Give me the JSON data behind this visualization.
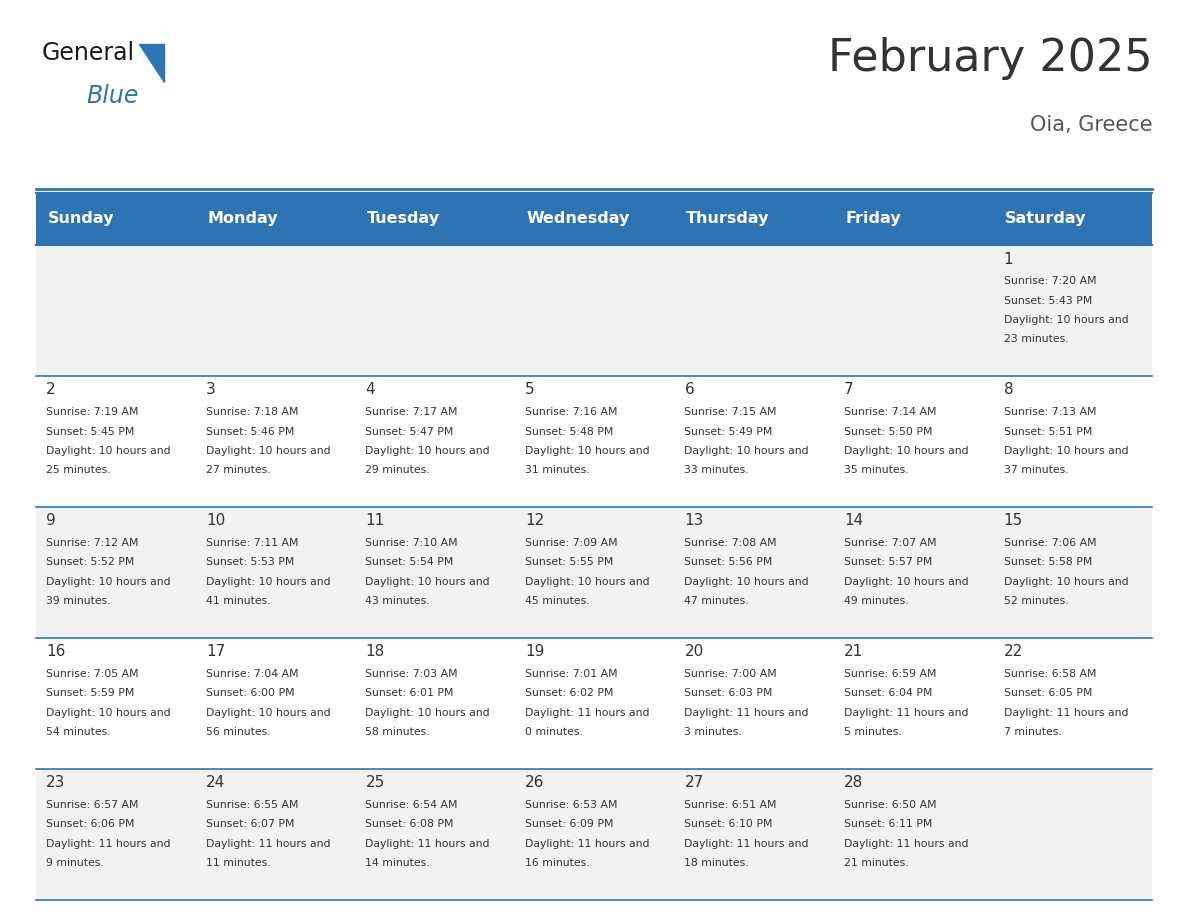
{
  "title": "February 2025",
  "subtitle": "Oia, Greece",
  "days_of_week": [
    "Sunday",
    "Monday",
    "Tuesday",
    "Wednesday",
    "Thursday",
    "Friday",
    "Saturday"
  ],
  "header_bg": "#2E74B5",
  "header_text": "#FFFFFF",
  "row_bg_even": "#F2F2F2",
  "row_bg_odd": "#FFFFFF",
  "cell_text_color": "#333333",
  "border_color": "#2E74B5",
  "title_color": "#333333",
  "subtitle_color": "#555555",
  "calendar_data": {
    "1": {
      "sunrise": "7:20 AM",
      "sunset": "5:43 PM",
      "daylight": "10 hours and 23 minutes",
      "row": 0,
      "col": 6
    },
    "2": {
      "sunrise": "7:19 AM",
      "sunset": "5:45 PM",
      "daylight": "10 hours and 25 minutes",
      "row": 1,
      "col": 0
    },
    "3": {
      "sunrise": "7:18 AM",
      "sunset": "5:46 PM",
      "daylight": "10 hours and 27 minutes",
      "row": 1,
      "col": 1
    },
    "4": {
      "sunrise": "7:17 AM",
      "sunset": "5:47 PM",
      "daylight": "10 hours and 29 minutes",
      "row": 1,
      "col": 2
    },
    "5": {
      "sunrise": "7:16 AM",
      "sunset": "5:48 PM",
      "daylight": "10 hours and 31 minutes",
      "row": 1,
      "col": 3
    },
    "6": {
      "sunrise": "7:15 AM",
      "sunset": "5:49 PM",
      "daylight": "10 hours and 33 minutes",
      "row": 1,
      "col": 4
    },
    "7": {
      "sunrise": "7:14 AM",
      "sunset": "5:50 PM",
      "daylight": "10 hours and 35 minutes",
      "row": 1,
      "col": 5
    },
    "8": {
      "sunrise": "7:13 AM",
      "sunset": "5:51 PM",
      "daylight": "10 hours and 37 minutes",
      "row": 1,
      "col": 6
    },
    "9": {
      "sunrise": "7:12 AM",
      "sunset": "5:52 PM",
      "daylight": "10 hours and 39 minutes",
      "row": 2,
      "col": 0
    },
    "10": {
      "sunrise": "7:11 AM",
      "sunset": "5:53 PM",
      "daylight": "10 hours and 41 minutes",
      "row": 2,
      "col": 1
    },
    "11": {
      "sunrise": "7:10 AM",
      "sunset": "5:54 PM",
      "daylight": "10 hours and 43 minutes",
      "row": 2,
      "col": 2
    },
    "12": {
      "sunrise": "7:09 AM",
      "sunset": "5:55 PM",
      "daylight": "10 hours and 45 minutes",
      "row": 2,
      "col": 3
    },
    "13": {
      "sunrise": "7:08 AM",
      "sunset": "5:56 PM",
      "daylight": "10 hours and 47 minutes",
      "row": 2,
      "col": 4
    },
    "14": {
      "sunrise": "7:07 AM",
      "sunset": "5:57 PM",
      "daylight": "10 hours and 49 minutes",
      "row": 2,
      "col": 5
    },
    "15": {
      "sunrise": "7:06 AM",
      "sunset": "5:58 PM",
      "daylight": "10 hours and 52 minutes",
      "row": 2,
      "col": 6
    },
    "16": {
      "sunrise": "7:05 AM",
      "sunset": "5:59 PM",
      "daylight": "10 hours and 54 minutes",
      "row": 3,
      "col": 0
    },
    "17": {
      "sunrise": "7:04 AM",
      "sunset": "6:00 PM",
      "daylight": "10 hours and 56 minutes",
      "row": 3,
      "col": 1
    },
    "18": {
      "sunrise": "7:03 AM",
      "sunset": "6:01 PM",
      "daylight": "10 hours and 58 minutes",
      "row": 3,
      "col": 2
    },
    "19": {
      "sunrise": "7:01 AM",
      "sunset": "6:02 PM",
      "daylight": "11 hours and 0 minutes",
      "row": 3,
      "col": 3
    },
    "20": {
      "sunrise": "7:00 AM",
      "sunset": "6:03 PM",
      "daylight": "11 hours and 3 minutes",
      "row": 3,
      "col": 4
    },
    "21": {
      "sunrise": "6:59 AM",
      "sunset": "6:04 PM",
      "daylight": "11 hours and 5 minutes",
      "row": 3,
      "col": 5
    },
    "22": {
      "sunrise": "6:58 AM",
      "sunset": "6:05 PM",
      "daylight": "11 hours and 7 minutes",
      "row": 3,
      "col": 6
    },
    "23": {
      "sunrise": "6:57 AM",
      "sunset": "6:06 PM",
      "daylight": "11 hours and 9 minutes",
      "row": 4,
      "col": 0
    },
    "24": {
      "sunrise": "6:55 AM",
      "sunset": "6:07 PM",
      "daylight": "11 hours and 11 minutes",
      "row": 4,
      "col": 1
    },
    "25": {
      "sunrise": "6:54 AM",
      "sunset": "6:08 PM",
      "daylight": "11 hours and 14 minutes",
      "row": 4,
      "col": 2
    },
    "26": {
      "sunrise": "6:53 AM",
      "sunset": "6:09 PM",
      "daylight": "11 hours and 16 minutes",
      "row": 4,
      "col": 3
    },
    "27": {
      "sunrise": "6:51 AM",
      "sunset": "6:10 PM",
      "daylight": "11 hours and 18 minutes",
      "row": 4,
      "col": 4
    },
    "28": {
      "sunrise": "6:50 AM",
      "sunset": "6:11 PM",
      "daylight": "11 hours and 21 minutes",
      "row": 4,
      "col": 5
    }
  },
  "num_rows": 5,
  "logo_text_general": "General",
  "logo_text_blue": "Blue",
  "logo_color_general": "#1A1A1A",
  "logo_color_blue": "#2E74B5",
  "logo_triangle_color": "#2E74B5"
}
